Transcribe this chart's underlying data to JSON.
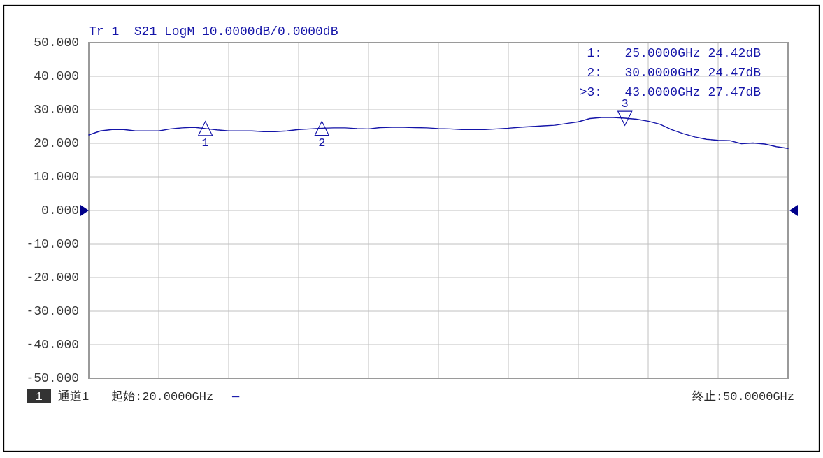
{
  "chart_data": {
    "type": "line",
    "title": "Tr 1  S21 LogM 10.0000dB/0.0000dB",
    "categories": [
      null,
      null,
      null,
      null,
      null,
      null,
      null,
      null,
      null,
      null,
      null,
      null,
      null,
      null,
      null,
      null,
      null,
      null,
      null,
      null,
      null,
      null,
      null,
      null,
      null,
      null,
      null,
      null,
      null,
      null,
      null,
      null,
      null,
      null,
      null,
      null,
      null,
      null,
      null,
      null,
      null,
      null,
      null,
      null,
      null,
      null,
      null,
      null,
      null,
      null,
      null,
      null,
      null,
      null,
      null,
      null,
      null,
      null,
      null,
      null,
      null
    ],
    "series": [
      {
        "type": "line",
        "color": "#1414a8",
        "values": [
          22.5,
          23.7,
          24.1,
          24.1,
          23.7,
          23.7,
          23.7,
          24.3,
          24.6,
          24.8,
          24.4,
          24.0,
          23.7,
          23.7,
          23.7,
          23.5,
          23.5,
          23.7,
          24.1,
          24.3,
          24.5,
          24.6,
          24.6,
          24.4,
          24.3,
          24.7,
          24.8,
          24.8,
          24.7,
          24.6,
          24.4,
          24.3,
          24.1,
          24.1,
          24.1,
          24.3,
          24.5,
          24.8,
          25.0,
          25.2,
          25.4,
          25.9,
          26.4,
          27.4,
          27.7,
          27.7,
          27.5,
          27.2,
          26.6,
          25.7,
          24.1,
          22.9,
          21.9,
          21.2,
          20.9,
          20.8,
          19.9,
          20.1,
          19.8,
          19.0,
          18.5
        ]
      },
      {
        "type": "scatter",
        "name": "1",
        "marker": "triangle",
        "color": "#1414a8",
        "values": [
          null,
          null,
          null,
          null,
          null,
          null,
          null,
          null,
          null,
          null,
          24.42,
          null,
          null,
          null,
          null,
          null,
          null,
          null,
          null,
          null,
          null,
          null,
          null,
          null,
          null,
          null,
          null,
          null,
          null,
          null,
          null,
          null,
          null,
          null,
          null,
          null,
          null,
          null,
          null,
          null,
          null,
          null,
          null,
          null,
          null,
          null,
          null,
          null,
          null,
          null,
          null,
          null,
          null,
          null,
          null,
          null,
          null,
          null,
          null,
          null,
          null
        ]
      },
      {
        "type": "scatter",
        "name": "2",
        "marker": "triangle",
        "color": "#1414a8",
        "values": [
          null,
          null,
          null,
          null,
          null,
          null,
          null,
          null,
          null,
          null,
          null,
          null,
          null,
          null,
          null,
          null,
          null,
          null,
          null,
          null,
          24.47,
          null,
          null,
          null,
          null,
          null,
          null,
          null,
          null,
          null,
          null,
          null,
          null,
          null,
          null,
          null,
          null,
          null,
          null,
          null,
          null,
          null,
          null,
          null,
          null,
          null,
          null,
          null,
          null,
          null,
          null,
          null,
          null,
          null,
          null,
          null,
          null,
          null,
          null,
          null,
          null
        ]
      },
      {
        "type": "scatter",
        "name": "3",
        "marker": "triangle",
        "color": "#1414a8",
        "values": [
          null,
          null,
          null,
          null,
          null,
          null,
          null,
          null,
          null,
          null,
          null,
          null,
          null,
          null,
          null,
          null,
          null,
          null,
          null,
          null,
          null,
          null,
          null,
          null,
          null,
          null,
          null,
          null,
          null,
          null,
          null,
          null,
          null,
          null,
          null,
          null,
          null,
          null,
          null,
          null,
          null,
          null,
          null,
          null,
          null,
          null,
          27.47,
          null,
          null,
          null,
          null,
          null,
          null,
          null,
          null,
          null,
          null,
          null,
          null,
          null,
          null
        ]
      }
    ],
    "ylim": [
      -50,
      50
    ],
    "yticks": [
      {
        "value": 50,
        "label": "50.000"
      },
      {
        "value": 40,
        "label": "40.000"
      },
      {
        "value": 30,
        "label": "30.000"
      },
      {
        "value": 20,
        "label": "20.000"
      },
      {
        "value": 10,
        "label": "10.000"
      },
      {
        "value": 0,
        "label": "0.000"
      },
      {
        "value": -10,
        "label": "-10.000"
      },
      {
        "value": -20,
        "label": "-20.000"
      },
      {
        "value": -30,
        "label": "-30.000"
      },
      {
        "value": -40,
        "label": "-40.000"
      },
      {
        "value": -50,
        "label": "-50.000"
      }
    ],
    "tick_labels": "y",
    "grid": true,
    "annotations": [
      "1:   25.0000GHz 24.42dB",
      "2:   30.0000GHz 24.47dB",
      ">3:   43.0000GHz 27.47dB",
      "1",
      "通道1",
      "起始:20.0000GHz",
      "—",
      "终止:50.0000GHz"
    ]
  }
}
